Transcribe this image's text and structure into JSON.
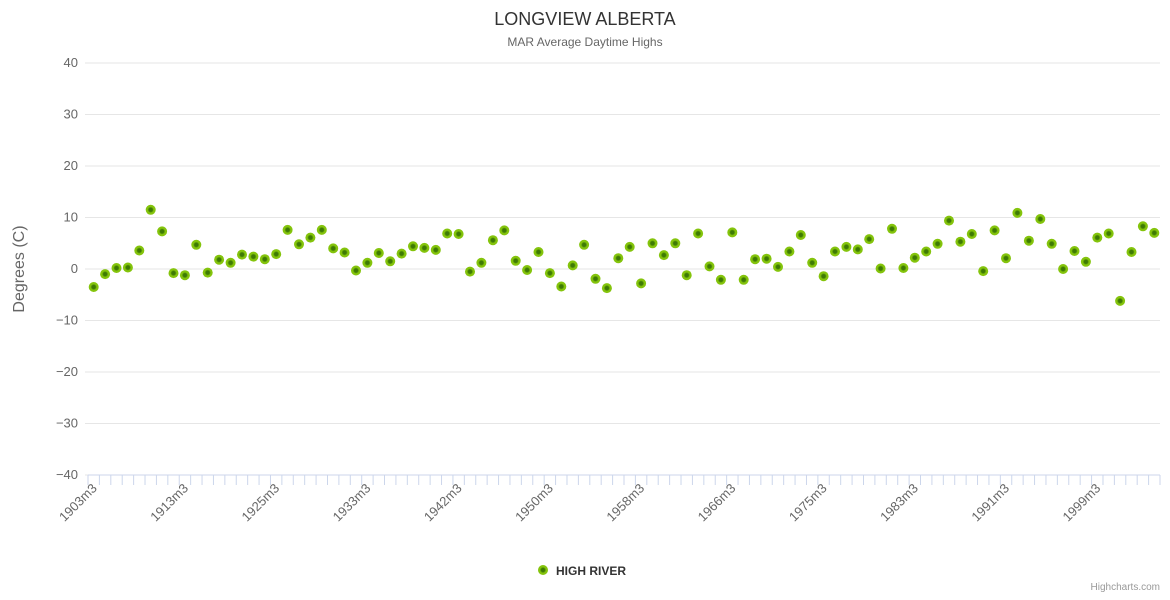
{
  "credit": "Highcharts.com",
  "chart_data": {
    "type": "scatter",
    "title": "LONGVIEW ALBERTA",
    "subtitle": "MAR Average Daytime Highs",
    "xlabel": "",
    "ylabel": "Degrees (C)",
    "ylim": [
      -40,
      40
    ],
    "y_ticks": [
      40,
      30,
      20,
      10,
      0,
      -10,
      -20,
      -30,
      -40
    ],
    "grid": true,
    "legend_position": "bottom-center",
    "x_tick_labels": [
      "1903m3",
      "1913m3",
      "1925m3",
      "1933m3",
      "1942m3",
      "1950m3",
      "1958m3",
      "1966m3",
      "1975m3",
      "1983m3",
      "1991m3",
      "1999m3"
    ],
    "x_tick_indices": [
      0,
      8,
      16,
      24,
      32,
      40,
      48,
      56,
      64,
      72,
      80,
      88
    ],
    "series": [
      {
        "name": "HIGH RIVER",
        "marker_color": "#84c40c",
        "marker_center_color": "#3e7a04",
        "values": [
          -3.5,
          -1.0,
          0.2,
          0.3,
          3.6,
          11.5,
          7.3,
          -0.8,
          -1.2,
          4.7,
          -0.7,
          1.8,
          1.2,
          2.8,
          2.4,
          1.9,
          2.9,
          7.6,
          4.8,
          6.1,
          7.6,
          4.0,
          3.2,
          -0.3,
          1.2,
          3.1,
          1.5,
          3.0,
          4.4,
          4.1,
          3.7,
          6.9,
          6.8,
          -0.5,
          1.2,
          5.6,
          7.5,
          1.6,
          -0.2,
          3.3,
          -0.8,
          -3.4,
          0.7,
          4.7,
          -1.9,
          -3.7,
          2.1,
          4.3,
          -2.8,
          5.0,
          2.7,
          5.0,
          -1.2,
          6.9,
          0.5,
          -2.1,
          7.1,
          -2.1,
          1.9,
          2.0,
          0.4,
          3.4,
          6.6,
          1.2,
          -1.4,
          3.4,
          4.3,
          3.8,
          5.8,
          0.1,
          7.8,
          0.2,
          2.2,
          3.4,
          4.9,
          9.4,
          5.3,
          6.8,
          -0.4,
          7.5,
          2.1,
          10.9,
          5.5,
          9.7,
          4.9,
          0.0,
          3.5,
          1.4,
          6.1,
          6.9,
          -6.2,
          3.3,
          8.3,
          7.0
        ]
      }
    ]
  },
  "colors": {
    "background": "#ffffff",
    "title": "#333333",
    "subtitle": "#666666",
    "axis_label": "#666666",
    "axis_title": "#666666",
    "gridline": "#e6e6e6",
    "axis_line": "#ccd6eb",
    "tick": "#ccd6eb",
    "legend_text": "#333333",
    "credit": "#999999"
  }
}
